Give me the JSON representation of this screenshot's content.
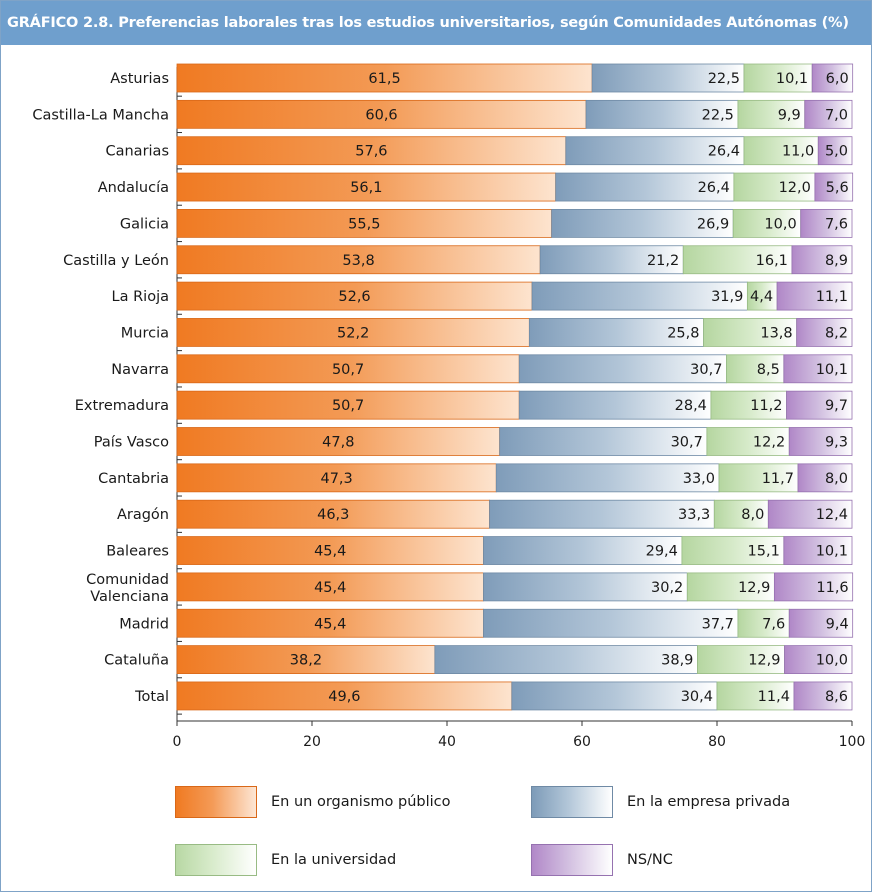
{
  "title": "GRÁFICO 2.8. Preferencias laborales tras los estudios universitarios, según Comunidades Autónomas (%)",
  "colors": {
    "header_bg": "#6f9fcd",
    "series": [
      "#f07a22",
      "#7d9bb8",
      "#b8d8a4",
      "#b188c8"
    ]
  },
  "chart_data": {
    "type": "bar",
    "orientation": "horizontal",
    "stacked": true,
    "title": "GRÁFICO 2.8. Preferencias laborales tras los estudios universitarios, según Comunidades Autónomas (%)",
    "categories": [
      "Asturias",
      "Castilla-La Mancha",
      "Canarias",
      "Andalucía",
      "Galicia",
      "Castilla y León",
      "La Rioja",
      "Murcia",
      "Navarra",
      "Extremadura",
      "País Vasco",
      "Cantabria",
      "Aragón",
      "Baleares",
      "Comunidad Valenciana",
      "Madrid",
      "Cataluña",
      "Total"
    ],
    "series": [
      {
        "name": "En un organismo público",
        "values": [
          61.5,
          60.6,
          57.6,
          56.1,
          55.5,
          53.8,
          52.6,
          52.2,
          50.7,
          50.7,
          47.8,
          47.3,
          46.3,
          45.4,
          45.4,
          45.4,
          38.2,
          49.6
        ],
        "labels": [
          "61,5",
          "60,6",
          "57,6",
          "56,1",
          "55,5",
          "53,8",
          "52,6",
          "52,2",
          "50,7",
          "50,7",
          "47,8",
          "47,3",
          "46,3",
          "45,4",
          "45,4",
          "45,4",
          "38,2",
          "49,6"
        ]
      },
      {
        "name": "En la empresa privada",
        "values": [
          22.5,
          22.5,
          26.4,
          26.4,
          26.9,
          21.2,
          31.9,
          25.8,
          30.7,
          28.4,
          30.7,
          33.0,
          33.3,
          29.4,
          30.2,
          37.7,
          38.9,
          30.4
        ],
        "labels": [
          "22,5",
          "22,5",
          "26,4",
          "26,4",
          "26,9",
          "21,2",
          "31,9",
          "25,8",
          "30,7",
          "28,4",
          "30,7",
          "33,0",
          "33,3",
          "29,4",
          "30,2",
          "37,7",
          "38,9",
          "30,4"
        ]
      },
      {
        "name": "En la universidad",
        "values": [
          10.1,
          9.9,
          11.0,
          12.0,
          10.0,
          16.1,
          4.4,
          13.8,
          8.5,
          11.2,
          12.2,
          11.7,
          8.0,
          15.1,
          12.9,
          7.6,
          12.9,
          11.4
        ],
        "labels": [
          "10,1",
          "9,9",
          "11,0",
          "12,0",
          "10,0",
          "16,1",
          "4,4",
          "13,8",
          "8,5",
          "11,2",
          "12,2",
          "11,7",
          "8,0",
          "15,1",
          "12,9",
          "7,6",
          "12,9",
          "11,4"
        ]
      },
      {
        "name": "NS/NC",
        "values": [
          6.0,
          7.0,
          5.0,
          5.6,
          7.6,
          8.9,
          11.1,
          8.2,
          10.1,
          9.7,
          9.3,
          8.0,
          12.4,
          10.1,
          11.6,
          9.4,
          10.0,
          8.6
        ],
        "labels": [
          "6,0",
          "7,0",
          "5,0",
          "5,6",
          "7,6",
          "8,9",
          "11,1",
          "8,2",
          "10,1",
          "9,7",
          "9,3",
          "8,0",
          "12,4",
          "10,1",
          "11,6",
          "9,4",
          "10,0",
          "8,6"
        ]
      }
    ],
    "xlim": [
      0,
      100
    ],
    "xticks": [
      "0",
      "20",
      "40",
      "60",
      "80",
      "100"
    ],
    "grid": false,
    "legend": {
      "position": "bottom",
      "columns": 2
    }
  }
}
